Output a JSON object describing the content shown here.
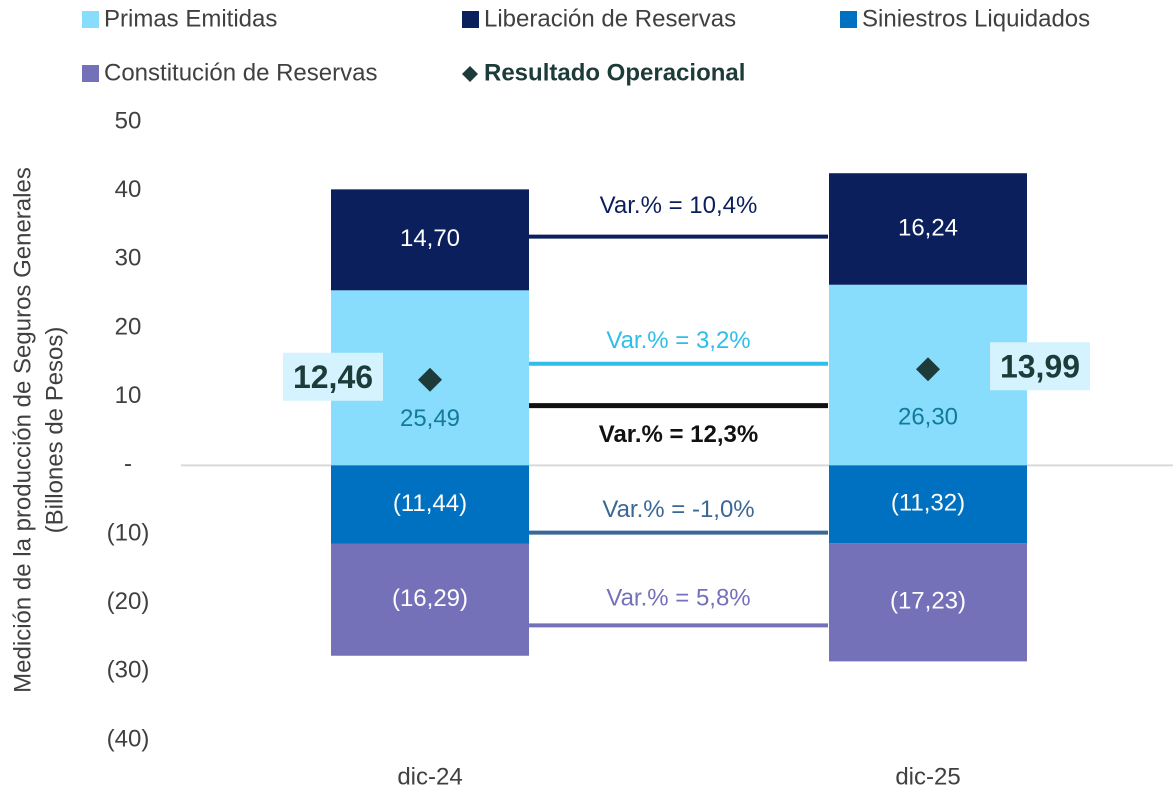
{
  "chart_data": {
    "type": "bar",
    "stacked": true,
    "y_axis_label": [
      "Medición de la producción de Seguros Generales",
      "(Billones de Pesos)"
    ],
    "categories": [
      "dic-24",
      "dic-25"
    ],
    "ylim": [
      -40,
      50
    ],
    "yticks": [
      50,
      40,
      30,
      20,
      10,
      {
        "value": 0,
        "label": "-"
      },
      {
        "value": -10,
        "label": "(10)"
      },
      {
        "value": -20,
        "label": "(20)"
      },
      {
        "value": -30,
        "label": "(30)"
      },
      {
        "value": -40,
        "label": "(40)"
      }
    ],
    "series": [
      {
        "name": "Primas Emitidas",
        "color": "#87ddfb",
        "label_color": "#14799a",
        "values": [
          25.49,
          26.3
        ],
        "value_labels": [
          "25,49",
          "26,30"
        ]
      },
      {
        "name": "Liberación de Reservas",
        "color": "#0b1f5c",
        "label_color": "#ffffff",
        "values": [
          14.7,
          16.24
        ],
        "value_labels": [
          "14,70",
          "16,24"
        ]
      },
      {
        "name": "Siniestros Liquidados",
        "color": "#0070c0",
        "label_color": "#ffffff",
        "values": [
          -11.44,
          -11.32
        ],
        "value_labels": [
          "(11,44)",
          "(11,32)"
        ]
      },
      {
        "name": "Constitución de Reservas",
        "color": "#7571b9",
        "label_color": "#ffffff",
        "values": [
          -16.29,
          -17.23
        ],
        "value_labels": [
          "(16,29)",
          "(17,23)"
        ]
      },
      {
        "name": "Resultado Operacional",
        "type": "scatter",
        "color": "#1d3b38",
        "values": [
          12.46,
          13.99
        ],
        "value_labels": [
          "12,46",
          "13,99"
        ]
      }
    ],
    "annotations": [
      {
        "text": "Var.% = 10,4%",
        "color": "#0b1f5c"
      },
      {
        "text": "Var.% = 3,2%",
        "color": "#2fbdea"
      },
      {
        "text": "Var.% = 12,3%",
        "color": "#111111"
      },
      {
        "text": "Var.% = -1,0%",
        "color": "#3a6796"
      },
      {
        "text": "Var.% = 5,8%",
        "color": "#7571b9"
      }
    ]
  }
}
